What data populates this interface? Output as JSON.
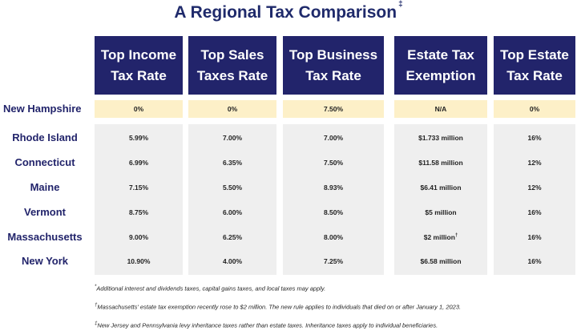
{
  "title": "A Regional Tax Comparison",
  "title_mark": "‡",
  "headers": [
    {
      "line1": "Top Income",
      "line2": "Tax Rate"
    },
    {
      "line1": "Top Sales",
      "line2": "Taxes Rate"
    },
    {
      "line1": "Top Business",
      "line2": "Tax Rate"
    },
    {
      "line1": "Estate Tax",
      "line2": "Exemption"
    },
    {
      "line1": "Top Estate",
      "line2": "Tax Rate"
    }
  ],
  "rows": [
    {
      "state": "New Hampshire",
      "income": "0%",
      "sales": "0%",
      "business": "7.50%",
      "exemption": "N/A",
      "exemption_mark": "",
      "estate": "0%"
    },
    {
      "state": "Rhode Island",
      "income": "5.99%",
      "sales": "7.00%",
      "business": "7.00%",
      "exemption": "$1.733 million",
      "exemption_mark": "",
      "estate": "16%"
    },
    {
      "state": "Connecticut",
      "income": "6.99%",
      "sales": "6.35%",
      "business": "7.50%",
      "exemption": "$11.58 million",
      "exemption_mark": "",
      "estate": "12%"
    },
    {
      "state": "Maine",
      "income": "7.15%",
      "sales": "5.50%",
      "business": "8.93%",
      "exemption": "$6.41 million",
      "exemption_mark": "",
      "estate": "12%"
    },
    {
      "state": "Vermont",
      "income": "8.75%",
      "sales": "6.00%",
      "business": "8.50%",
      "exemption": "$5 million",
      "exemption_mark": "",
      "estate": "16%"
    },
    {
      "state": "Massachusetts",
      "income": "9.00%",
      "sales": "6.25%",
      "business": "8.00%",
      "exemption": "$2 million",
      "exemption_mark": "†",
      "estate": "16%"
    },
    {
      "state": "New York",
      "income": "10.90%",
      "sales": "4.00%",
      "business": "7.25%",
      "exemption": "$6.58 million",
      "exemption_mark": "",
      "estate": "16%"
    }
  ],
  "footnotes": [
    {
      "mark": "*",
      "text": "Additional interest and dividends taxes, capital gains taxes, and local taxes may apply."
    },
    {
      "mark": "†",
      "text": "Massachusetts' estate tax exemption recently rose to $2 million. The new rule applies to individuals that died on or after January 1, 2023."
    },
    {
      "mark": "‡",
      "text": "New Jersey and Pennsylvania levy inheritance taxes rather than estate taxes. Inheritance taxes apply to individual beneficiaries."
    }
  ],
  "colors": {
    "header_bg": "#22246b",
    "nh_row_bg": "#fdf0c8",
    "rows_bg": "#efefef",
    "label_text": "#22246b"
  }
}
